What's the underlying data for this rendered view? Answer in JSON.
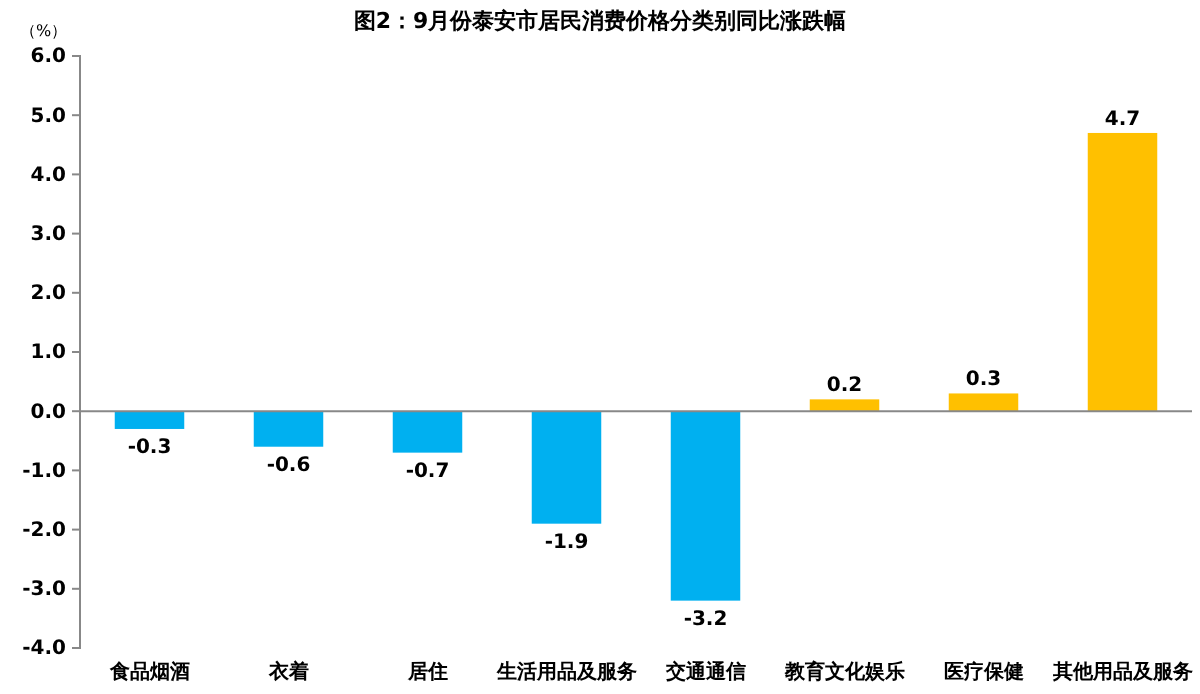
{
  "chart_data": {
    "type": "bar",
    "title": "图2：9月份泰安市居民消费价格分类别同比涨跌幅",
    "ylabel": "（%）",
    "categories": [
      "食品烟酒",
      "衣着",
      "居住",
      "生活用品及服务",
      "交通通信",
      "教育文化娱乐",
      "医疗保健",
      "其他用品及服务"
    ],
    "values": [
      -0.3,
      -0.6,
      -0.7,
      -1.9,
      -3.2,
      0.2,
      0.3,
      4.7
    ],
    "colors": [
      "#00b0f0",
      "#00b0f0",
      "#00b0f0",
      "#00b0f0",
      "#00b0f0",
      "#ffc000",
      "#ffc000",
      "#ffc000"
    ],
    "ylim": [
      -4,
      6
    ],
    "yticks": [
      {
        "value": -4,
        "label": "-4.0"
      },
      {
        "value": -3,
        "label": "-3.0"
      },
      {
        "value": -2,
        "label": "-2.0"
      },
      {
        "value": -1,
        "label": "-1.0"
      },
      {
        "value": 0,
        "label": "0.0"
      },
      {
        "value": 1,
        "label": "1.0"
      },
      {
        "value": 2,
        "label": "2.0"
      },
      {
        "value": 3,
        "label": "3.0"
      },
      {
        "value": 4,
        "label": "4.0"
      },
      {
        "value": 5,
        "label": "5.0"
      },
      {
        "value": 6,
        "label": "6.0"
      }
    ],
    "data_labels": true
  }
}
